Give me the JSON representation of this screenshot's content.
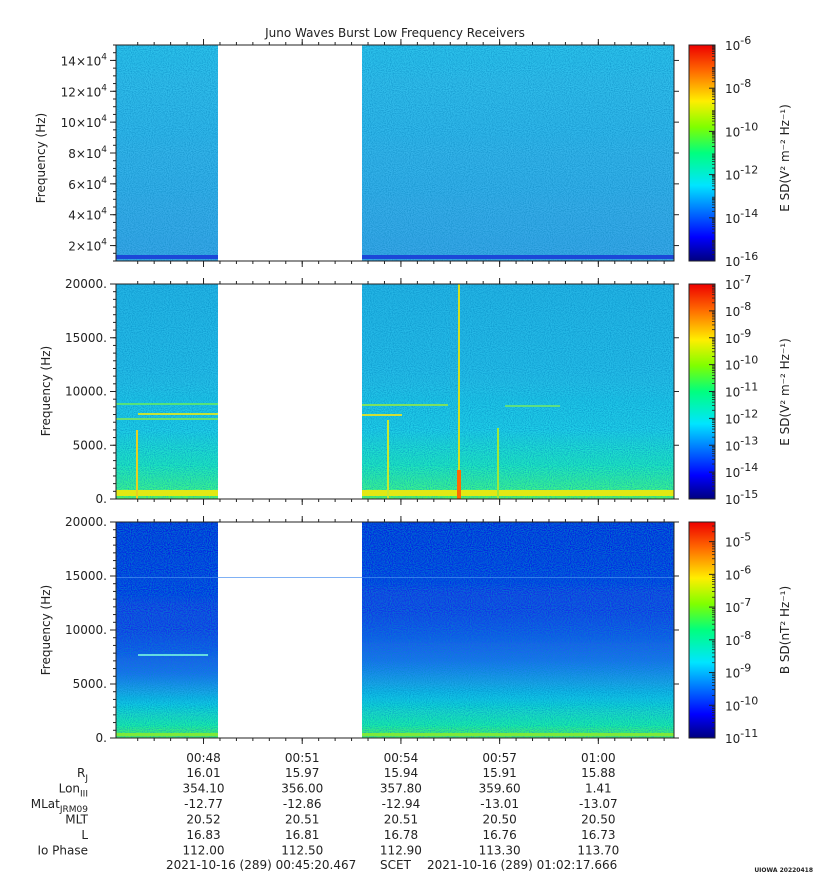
{
  "chart_data": {
    "type": "heatmap",
    "title": "Juno Waves Burst Low Frequency Receivers",
    "xlim_minutes": [
      45.34,
      62.3
    ],
    "gap_minutes": [
      49.0,
      53.9
    ],
    "x_ticks": [
      {
        "label": "00:48",
        "minute": 48.0
      },
      {
        "label": "00:51",
        "minute": 51.0
      },
      {
        "label": "00:54",
        "minute": 54.0
      },
      {
        "label": "00:57",
        "minute": 57.0
      },
      {
        "label": "01:00",
        "minute": 60.0
      }
    ],
    "panels": [
      {
        "ylabel": "Frequency (Hz)",
        "ylim": [
          10000,
          150000
        ],
        "y_ticks": [
          {
            "mant": "2×10",
            "exp": "4",
            "value": 20000
          },
          {
            "mant": "4×10",
            "exp": "4",
            "value": 40000
          },
          {
            "mant": "6×10",
            "exp": "4",
            "value": 60000
          },
          {
            "mant": "8×10",
            "exp": "4",
            "value": 80000
          },
          {
            "mant": "10×10",
            "exp": "4",
            "value": 100000
          },
          {
            "mant": "12×10",
            "exp": "4",
            "value": 120000
          },
          {
            "mant": "14×10",
            "exp": "4",
            "value": 140000
          }
        ],
        "colorbar_label": "E SD(V² m⁻² Hz⁻¹)",
        "colorbar_range_log10": [
          -16,
          -6
        ],
        "colorbar_ticks": [
          {
            "base": "10",
            "exp": "-6",
            "log": -6
          },
          {
            "base": "10",
            "exp": "-8",
            "log": -8
          },
          {
            "base": "10",
            "exp": "-10",
            "log": -10
          },
          {
            "base": "10",
            "exp": "-12",
            "log": -12
          },
          {
            "base": "10",
            "exp": "-14",
            "log": -14
          },
          {
            "base": "10",
            "exp": "-16",
            "log": -16
          }
        ]
      },
      {
        "ylabel": "Frequency (Hz)",
        "ylim": [
          0,
          20000
        ],
        "y_ticks": [
          {
            "label": "0.",
            "value": 0
          },
          {
            "label": "5000.",
            "value": 5000
          },
          {
            "label": "10000.",
            "value": 10000
          },
          {
            "label": "15000.",
            "value": 15000
          },
          {
            "label": "20000.",
            "value": 20000
          }
        ],
        "colorbar_label": "E SD(V² m⁻² Hz⁻¹)",
        "colorbar_range_log10": [
          -15,
          -7
        ],
        "colorbar_ticks": [
          {
            "base": "10",
            "exp": "-7",
            "log": -7
          },
          {
            "base": "10",
            "exp": "-8",
            "log": -8
          },
          {
            "base": "10",
            "exp": "-9",
            "log": -9
          },
          {
            "base": "10",
            "exp": "-10",
            "log": -10
          },
          {
            "base": "10",
            "exp": "-11",
            "log": -11
          },
          {
            "base": "10",
            "exp": "-12",
            "log": -12
          },
          {
            "base": "10",
            "exp": "-13",
            "log": -13
          },
          {
            "base": "10",
            "exp": "-14",
            "log": -14
          },
          {
            "base": "10",
            "exp": "-15",
            "log": -15
          }
        ]
      },
      {
        "ylabel": "Frequency (Hz)",
        "ylim": [
          0,
          20000
        ],
        "y_ticks": [
          {
            "label": "0.",
            "value": 0
          },
          {
            "label": "5000.",
            "value": 5000
          },
          {
            "label": "10000.",
            "value": 10000
          },
          {
            "label": "15000.",
            "value": 15000
          },
          {
            "label": "20000.",
            "value": 20000
          }
        ],
        "colorbar_label": "B SD(nT² Hz⁻¹)",
        "colorbar_range_log10": [
          -11,
          -4.4
        ],
        "colorbar_ticks": [
          {
            "base": "10",
            "exp": "-5",
            "log": -5
          },
          {
            "base": "10",
            "exp": "-6",
            "log": -6
          },
          {
            "base": "10",
            "exp": "-7",
            "log": -7
          },
          {
            "base": "10",
            "exp": "-8",
            "log": -8
          },
          {
            "base": "10",
            "exp": "-9",
            "log": -9
          },
          {
            "base": "10",
            "exp": "-10",
            "log": -10
          },
          {
            "base": "10",
            "exp": "-11",
            "log": -11
          }
        ]
      }
    ],
    "ephemeris": {
      "rows": [
        {
          "label": "R",
          "sub": "J",
          "values": [
            "16.01",
            "15.97",
            "15.94",
            "15.91",
            "15.88"
          ]
        },
        {
          "label": "Lon",
          "sub": "III",
          "values": [
            "354.10",
            "356.00",
            "357.80",
            "359.60",
            "1.41"
          ]
        },
        {
          "label": "MLat",
          "sub": "JRM09",
          "values": [
            "-12.77",
            "-12.86",
            "-12.94",
            "-13.01",
            "-13.07"
          ]
        },
        {
          "label": "MLT",
          "sub": "",
          "values": [
            "20.52",
            "20.51",
            "20.51",
            "20.50",
            "20.50"
          ]
        },
        {
          "label": "L",
          "sub": "",
          "values": [
            "16.83",
            "16.81",
            "16.78",
            "16.76",
            "16.73"
          ]
        },
        {
          "label": "Io Phase",
          "sub": "",
          "values": [
            "112.00",
            "112.50",
            "112.90",
            "113.30",
            "113.70"
          ]
        }
      ]
    },
    "time_range": {
      "start": "2021-10-16 (289) 00:45:20.467",
      "middle": "SCET",
      "end": "2021-10-16 (289) 01:02:17.666"
    },
    "credit": "UIOWA 20220418"
  }
}
